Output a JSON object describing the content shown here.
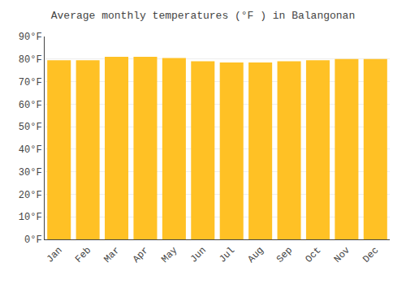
{
  "chart_data": {
    "type": "bar",
    "title": "Average monthly temperatures (°F ) in Balangonan",
    "categories": [
      "Jan",
      "Feb",
      "Mar",
      "Apr",
      "May",
      "Jun",
      "Jul",
      "Aug",
      "Sep",
      "Oct",
      "Nov",
      "Dec"
    ],
    "values": [
      79.5,
      79.5,
      81.0,
      81.0,
      80.5,
      79.0,
      78.5,
      78.5,
      79.0,
      79.5,
      80.0,
      80.0
    ],
    "color": "#FFC125",
    "ylim": [
      0,
      90
    ],
    "yticks": [
      {
        "value": 0,
        "label": "0°F"
      },
      {
        "value": 10,
        "label": "10°F"
      },
      {
        "value": 20,
        "label": "20°F"
      },
      {
        "value": 30,
        "label": "30°F"
      },
      {
        "value": 40,
        "label": "40°F"
      },
      {
        "value": 50,
        "label": "50°F"
      },
      {
        "value": 60,
        "label": "60°F"
      },
      {
        "value": 70,
        "label": "70°F"
      },
      {
        "value": 80,
        "label": "80°F"
      },
      {
        "value": 90,
        "label": "90°F"
      }
    ],
    "grid": true
  }
}
